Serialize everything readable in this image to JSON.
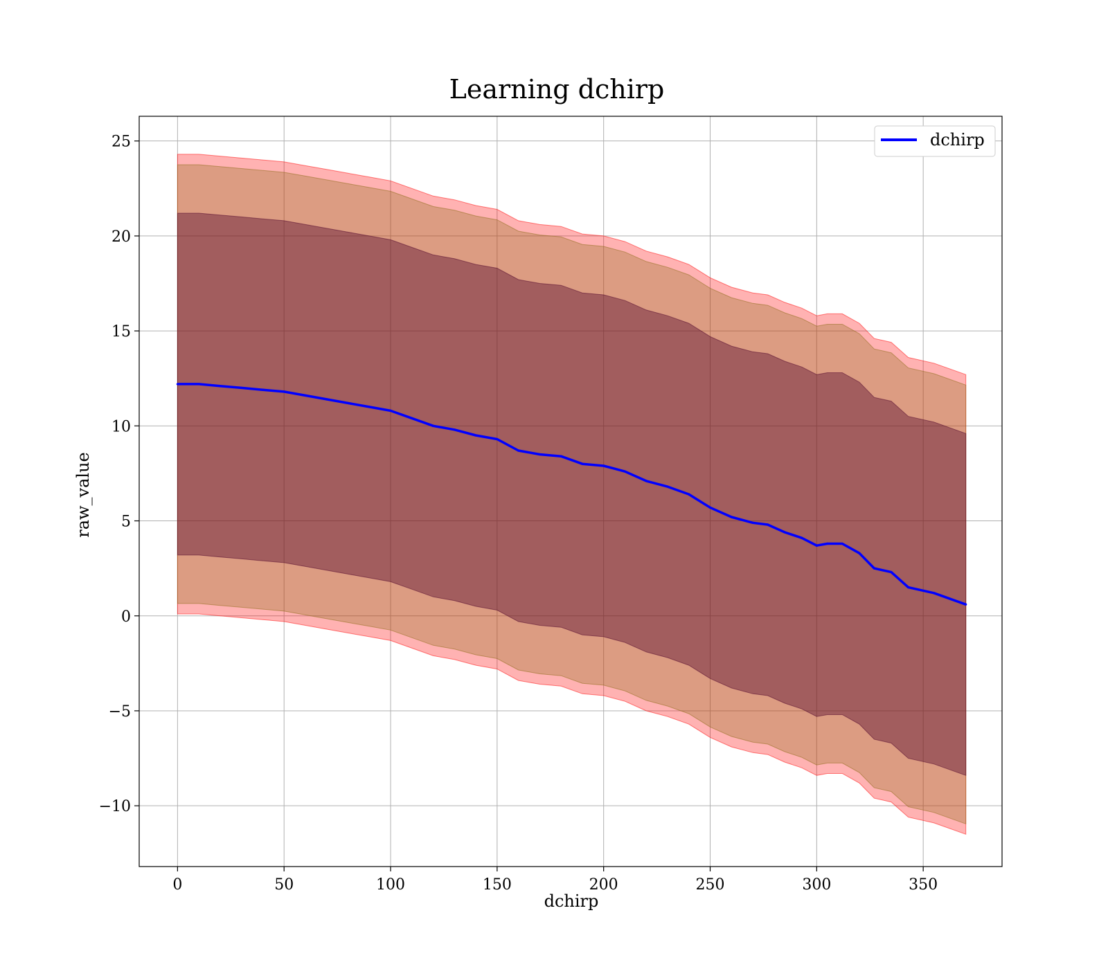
{
  "chart_data": {
    "type": "line",
    "title": "Learning dchirp",
    "xlabel": "dchirp",
    "ylabel": "raw_value",
    "xlim": [
      -18,
      387
    ],
    "ylim": [
      -13.2,
      26.3
    ],
    "xticks": [
      0,
      50,
      100,
      150,
      200,
      250,
      300,
      350
    ],
    "yticks": [
      -10,
      -5,
      0,
      5,
      10,
      15,
      20,
      25
    ],
    "ytick_labels": [
      "−10",
      "−5",
      "0",
      "5",
      "10",
      "15",
      "20",
      "25"
    ],
    "grid": true,
    "legend": {
      "position": "top-right",
      "entries": [
        "dchirp"
      ]
    },
    "colors": {
      "line": "#0000ff",
      "band_outer": "#ff0000",
      "band_middle": "#8b6914",
      "band_inner": "#4b0029"
    },
    "series": [
      {
        "name": "dchirp",
        "x": [
          0,
          10,
          20,
          30,
          40,
          50,
          60,
          70,
          80,
          90,
          100,
          110,
          120,
          130,
          140,
          150,
          160,
          170,
          180,
          190,
          200,
          210,
          220,
          230,
          240,
          250,
          260,
          270,
          277,
          285,
          293,
          300,
          305,
          312,
          320,
          327,
          335,
          343,
          355,
          370
        ],
        "y": [
          12.2,
          12.2,
          12.1,
          12.0,
          11.9,
          11.8,
          11.6,
          11.4,
          11.2,
          11.0,
          10.8,
          10.4,
          10.0,
          9.8,
          9.5,
          9.3,
          8.7,
          8.5,
          8.4,
          8.0,
          7.9,
          7.6,
          7.1,
          6.8,
          6.4,
          5.7,
          5.2,
          4.9,
          4.8,
          4.4,
          4.1,
          3.7,
          3.8,
          3.8,
          3.3,
          2.5,
          2.3,
          1.5,
          1.2,
          0.6
        ]
      }
    ],
    "bands": [
      {
        "level": "outer",
        "half_width": 12.1
      },
      {
        "level": "middle",
        "half_width": 11.55
      },
      {
        "level": "inner",
        "half_width": 9.0
      }
    ]
  }
}
